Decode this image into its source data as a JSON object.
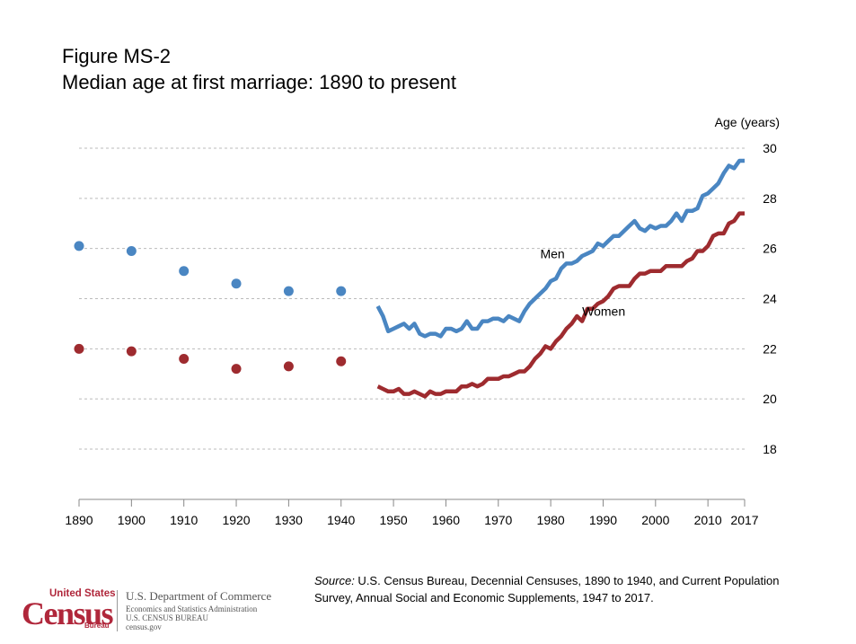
{
  "title": {
    "line1": "Figure MS-2",
    "line2": "Median age at first marriage: 1890 to present"
  },
  "source": {
    "label": "Source:",
    "text": " U.S. Census Bureau, Decennial Censuses, 1890 to 1940, and Current Population Survey, Annual Social and Economic Supplements, 1947 to 2017."
  },
  "logo": {
    "united_states": "United States",
    "census": "Census",
    "bureau": "Bureau",
    "dept": "U.S. Department of Commerce",
    "line2": "Economics and Statistics Administration",
    "line3": "U.S. CENSUS BUREAU",
    "line4": "census.gov"
  },
  "colors": {
    "men": "#4a86c2",
    "women": "#9e2b2f",
    "grid": "#bbbbbb",
    "axis": "#888888"
  },
  "chart_data": {
    "type": "line",
    "ylabel": "Age (years)",
    "xlim": [
      1890,
      2017
    ],
    "ylim": [
      16,
      30
    ],
    "x_ticks": [
      1890,
      1900,
      1910,
      1920,
      1930,
      1940,
      1950,
      1960,
      1970,
      1980,
      1990,
      2000,
      2010,
      2017
    ],
    "y_ticks": [
      18,
      20,
      22,
      24,
      26,
      28,
      30
    ],
    "grid": "horizontal dashed",
    "series": [
      {
        "name": "Men",
        "color": "#4a86c2",
        "points": [
          [
            1890,
            26.1
          ],
          [
            1900,
            25.9
          ],
          [
            1910,
            25.1
          ],
          [
            1920,
            24.6
          ],
          [
            1930,
            24.3
          ],
          [
            1940,
            24.3
          ]
        ],
        "x": [
          1947,
          1948,
          1949,
          1950,
          1951,
          1952,
          1953,
          1954,
          1955,
          1956,
          1957,
          1958,
          1959,
          1960,
          1961,
          1962,
          1963,
          1964,
          1965,
          1966,
          1967,
          1968,
          1969,
          1970,
          1971,
          1972,
          1973,
          1974,
          1975,
          1976,
          1977,
          1978,
          1979,
          1980,
          1981,
          1982,
          1983,
          1984,
          1985,
          1986,
          1987,
          1988,
          1989,
          1990,
          1991,
          1992,
          1993,
          1994,
          1995,
          1996,
          1997,
          1998,
          1999,
          2000,
          2001,
          2002,
          2003,
          2004,
          2005,
          2006,
          2007,
          2008,
          2009,
          2010,
          2011,
          2012,
          2013,
          2014,
          2015,
          2016,
          2017
        ],
        "values": [
          23.7,
          23.3,
          22.7,
          22.8,
          22.9,
          23.0,
          22.8,
          23.0,
          22.6,
          22.5,
          22.6,
          22.6,
          22.5,
          22.8,
          22.8,
          22.7,
          22.8,
          23.1,
          22.8,
          22.8,
          23.1,
          23.1,
          23.2,
          23.2,
          23.1,
          23.3,
          23.2,
          23.1,
          23.5,
          23.8,
          24.0,
          24.2,
          24.4,
          24.7,
          24.8,
          25.2,
          25.4,
          25.4,
          25.5,
          25.7,
          25.8,
          25.9,
          26.2,
          26.1,
          26.3,
          26.5,
          26.5,
          26.7,
          26.9,
          27.1,
          26.8,
          26.7,
          26.9,
          26.8,
          26.9,
          26.9,
          27.1,
          27.4,
          27.1,
          27.5,
          27.5,
          27.6,
          28.1,
          28.2,
          28.4,
          28.6,
          29.0,
          29.3,
          29.2,
          29.5,
          29.5
        ]
      },
      {
        "name": "Women",
        "color": "#9e2b2f",
        "points": [
          [
            1890,
            22.0
          ],
          [
            1900,
            21.9
          ],
          [
            1910,
            21.6
          ],
          [
            1920,
            21.2
          ],
          [
            1930,
            21.3
          ],
          [
            1940,
            21.5
          ]
        ],
        "x": [
          1947,
          1948,
          1949,
          1950,
          1951,
          1952,
          1953,
          1954,
          1955,
          1956,
          1957,
          1958,
          1959,
          1960,
          1961,
          1962,
          1963,
          1964,
          1965,
          1966,
          1967,
          1968,
          1969,
          1970,
          1971,
          1972,
          1973,
          1974,
          1975,
          1976,
          1977,
          1978,
          1979,
          1980,
          1981,
          1982,
          1983,
          1984,
          1985,
          1986,
          1987,
          1988,
          1989,
          1990,
          1991,
          1992,
          1993,
          1994,
          1995,
          1996,
          1997,
          1998,
          1999,
          2000,
          2001,
          2002,
          2003,
          2004,
          2005,
          2006,
          2007,
          2008,
          2009,
          2010,
          2011,
          2012,
          2013,
          2014,
          2015,
          2016,
          2017
        ],
        "values": [
          20.5,
          20.4,
          20.3,
          20.3,
          20.4,
          20.2,
          20.2,
          20.3,
          20.2,
          20.1,
          20.3,
          20.2,
          20.2,
          20.3,
          20.3,
          20.3,
          20.5,
          20.5,
          20.6,
          20.5,
          20.6,
          20.8,
          20.8,
          20.8,
          20.9,
          20.9,
          21.0,
          21.1,
          21.1,
          21.3,
          21.6,
          21.8,
          22.1,
          22.0,
          22.3,
          22.5,
          22.8,
          23.0,
          23.3,
          23.1,
          23.6,
          23.6,
          23.8,
          23.9,
          24.1,
          24.4,
          24.5,
          24.5,
          24.5,
          24.8,
          25.0,
          25.0,
          25.1,
          25.1,
          25.1,
          25.3,
          25.3,
          25.3,
          25.3,
          25.5,
          25.6,
          25.9,
          25.9,
          26.1,
          26.5,
          26.6,
          26.6,
          27.0,
          27.1,
          27.4,
          27.4
        ]
      }
    ],
    "annotations": [
      {
        "text": "Men",
        "x": 1978,
        "y": 25.8
      },
      {
        "text": "Women",
        "x": 1986,
        "y": 23.5
      }
    ]
  }
}
